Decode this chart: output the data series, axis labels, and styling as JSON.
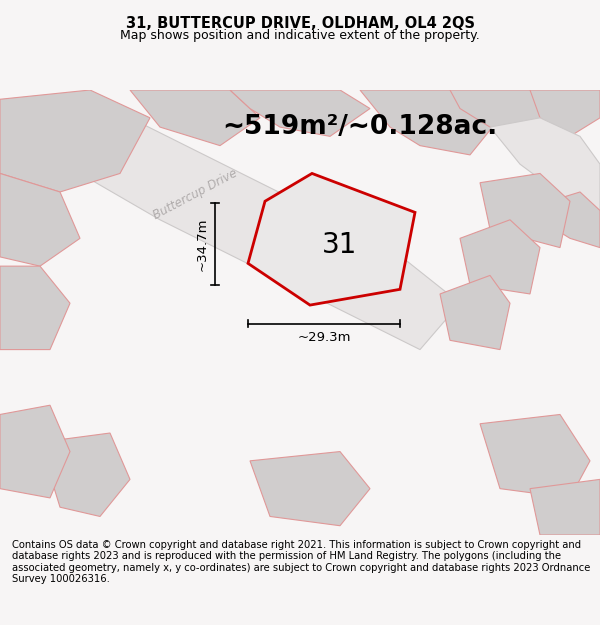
{
  "title_line1": "31, BUTTERCUP DRIVE, OLDHAM, OL4 2QS",
  "title_line2": "Map shows position and indicative extent of the property.",
  "area_label": "~519m²/~0.128ac.",
  "number_label": "31",
  "width_label": "~29.3m",
  "height_label": "~34.7m",
  "road_label": "Buttercup Drive",
  "footer_text": "Contains OS data © Crown copyright and database right 2021. This information is subject to Crown copyright and database rights 2023 and is reproduced with the permission of HM Land Registry. The polygons (including the associated geometry, namely x, y co-ordinates) are subject to Crown copyright and database rights 2023 Ordnance Survey 100026316.",
  "bg_color": "#f7f5f5",
  "map_bg_color": "#f0eeed",
  "plot_fill": "#eae8e8",
  "border_color": "#cc0000",
  "neighbor_fill": "#d0cdcd",
  "neighbor_edge": "#e09898",
  "road_fill": "#e8e5e5",
  "road_edge": "#ccc9c9",
  "title_fontsize": 10.5,
  "subtitle_fontsize": 9,
  "area_fontsize": 19,
  "number_fontsize": 20,
  "dim_fontsize": 9.5,
  "road_label_fontsize": 8.5,
  "footer_fontsize": 7.2
}
